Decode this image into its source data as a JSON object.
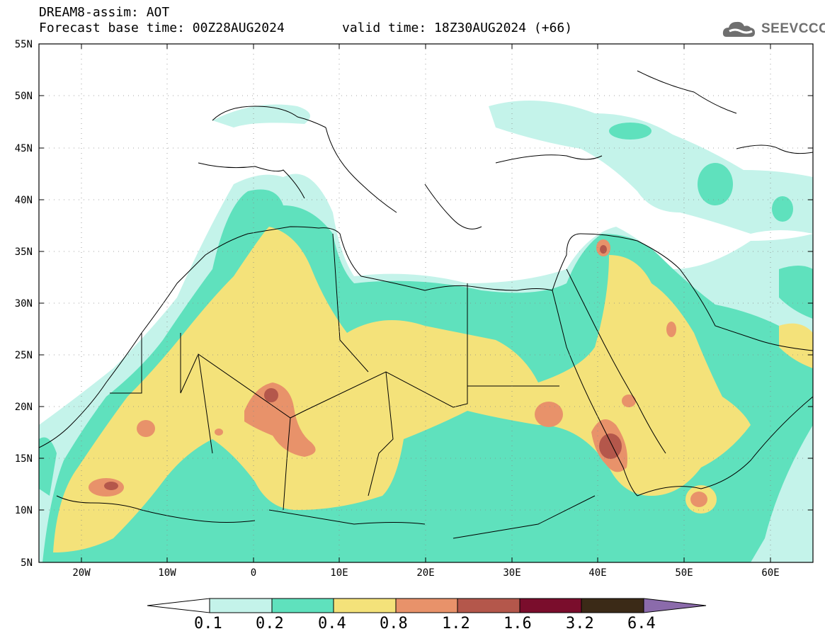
{
  "header": {
    "model_title": "DREAM8-assim: AOT",
    "base_time": "Forecast base time: 00Z28AUG2024",
    "valid_time": "valid time: 18Z30AUG2024 (+66)",
    "logo_text": "SEEVCCC"
  },
  "axes": {
    "lat_labels": [
      "55N",
      "50N",
      "45N",
      "40N",
      "35N",
      "30N",
      "25N",
      "20N",
      "15N",
      "10N",
      "5N"
    ],
    "lon_labels": [
      "20W",
      "10W",
      "0",
      "10E",
      "20E",
      "30E",
      "40E",
      "50E",
      "60E"
    ]
  },
  "legend": {
    "labels": [
      "0.1",
      "0.2",
      "0.4",
      "0.8",
      "1.2",
      "1.6",
      "3.2",
      "6.4"
    ],
    "colors": [
      "#c4f3ea",
      "#5fe1bd",
      "#f4e27a",
      "#e8926a",
      "#b4574b",
      "#7a0d2c",
      "#3b2a17",
      "#8b6bab"
    ],
    "under_color": "#ffffff"
  },
  "colors": {
    "land_outline": "#000000",
    "grid_dots": "#888888"
  }
}
